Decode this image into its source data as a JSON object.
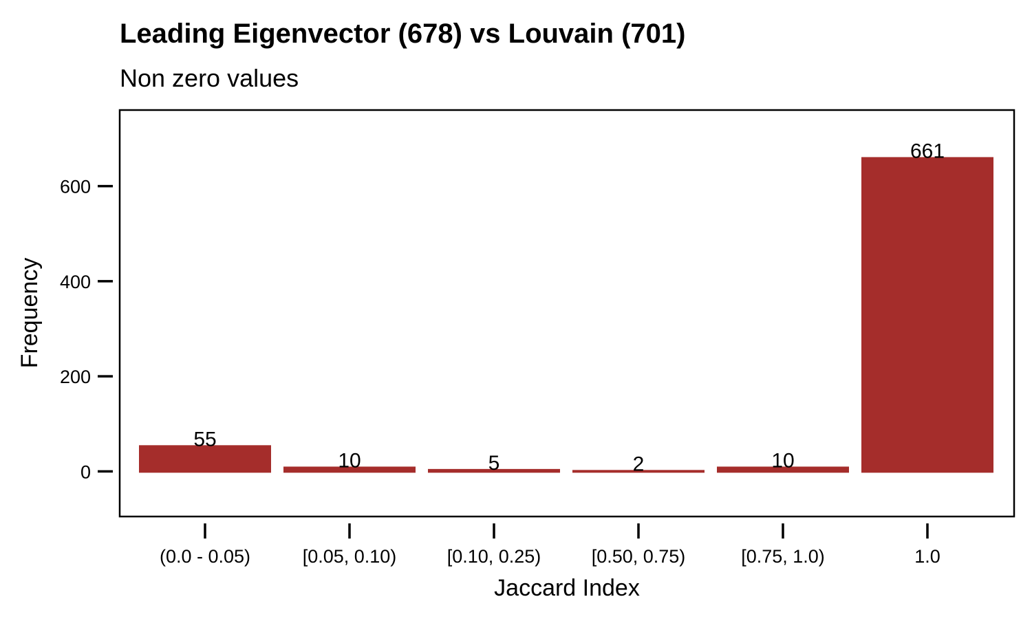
{
  "chart_data": {
    "type": "bar",
    "title": "Leading Eigenvector (678) vs Louvain (701)",
    "subtitle": "Non zero values",
    "xlabel": "Jaccard Index",
    "ylabel": "Frequency",
    "categories": [
      "(0.0 - 0.05)",
      "[0.05, 0.10)",
      "[0.10, 0.25)",
      "[0.50, 0.75)",
      "[0.75, 1.0)",
      "1.0"
    ],
    "values": [
      55,
      10,
      5,
      2,
      10,
      661
    ],
    "data_labels": [
      "55",
      "10",
      "5",
      "2",
      "10",
      "661"
    ],
    "yticks": [
      0,
      200,
      400,
      600
    ],
    "ytick_labels": [
      "0",
      "200",
      "400",
      "600"
    ],
    "ylim": [
      -95,
      760
    ],
    "grid": false,
    "legend": "none",
    "bar_color": "#a52d2b"
  }
}
